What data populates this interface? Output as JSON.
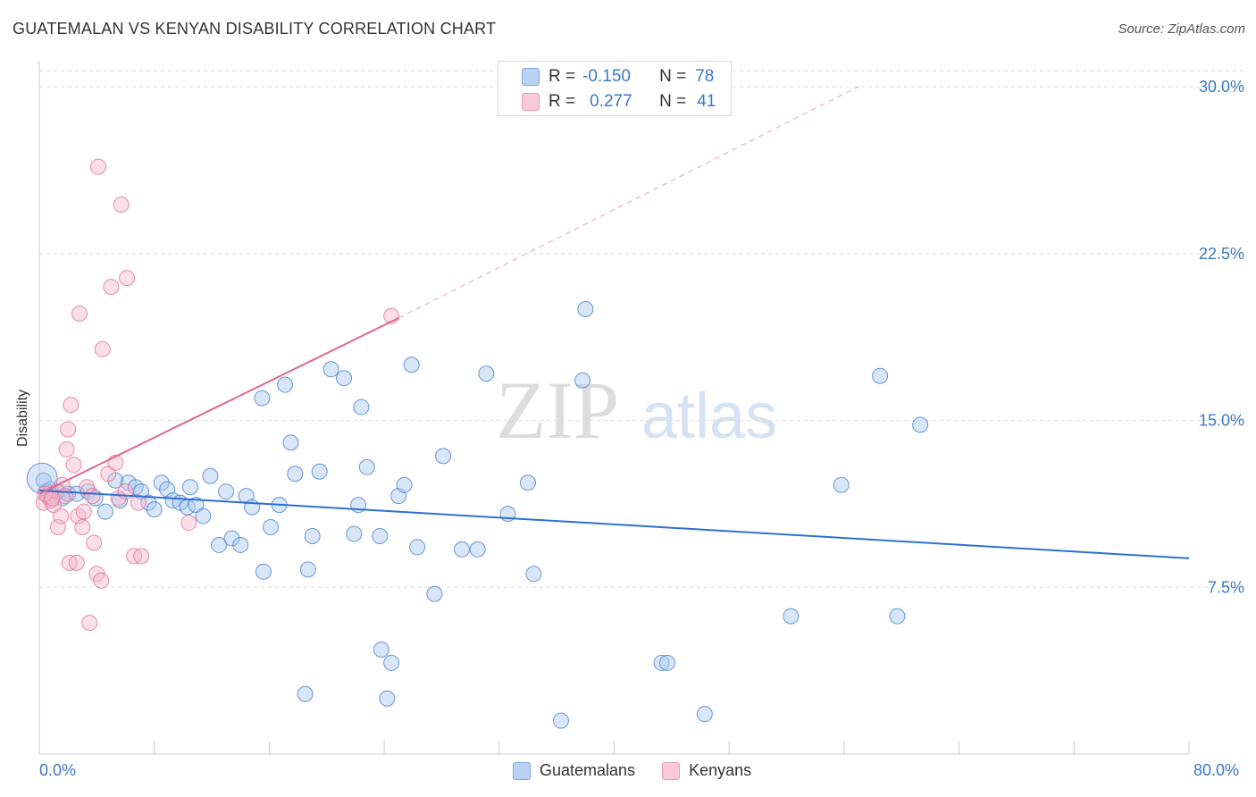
{
  "title": "GUATEMALAN VS KENYAN DISABILITY CORRELATION CHART",
  "source": "Source: ZipAtlas.com",
  "watermark": {
    "zip": "ZIP",
    "atlas": "atlas"
  },
  "stats": [
    {
      "r_label": "R =",
      "r_value": "-0.150",
      "n_label": "N =",
      "n_value": "78"
    },
    {
      "r_label": "R =",
      "r_value": "0.277",
      "n_label": "N =",
      "n_value": "41"
    }
  ],
  "chart_data": {
    "type": "scatter",
    "title": "GUATEMALAN VS KENYAN DISABILITY CORRELATION CHART",
    "xlabel": "",
    "ylabel": "Disability",
    "xlim": [
      0,
      80
    ],
    "ylim": [
      0,
      30
    ],
    "x_tick_labels": [
      "0.0%",
      "80.0%"
    ],
    "y_ticks": [
      7.5,
      15.0,
      22.5,
      30.0
    ],
    "y_tick_labels": [
      "7.5%",
      "15.0%",
      "22.5%",
      "30.0%"
    ],
    "grid": true,
    "legend_position": "bottom-center",
    "series": [
      {
        "name": "Guatemalans",
        "color": "#3b78c8",
        "fill": "#a9c7ee",
        "trend": {
          "x": [
            0,
            80
          ],
          "y": [
            11.85,
            8.8
          ]
        },
        "points": [
          [
            0.3,
            12.3
          ],
          [
            0.5,
            11.8
          ],
          [
            0.8,
            11.9
          ],
          [
            1.0,
            11.6
          ],
          [
            1.3,
            11.8
          ],
          [
            1.6,
            11.5
          ],
          [
            2.0,
            11.7
          ],
          [
            2.6,
            11.7
          ],
          [
            3.4,
            11.8
          ],
          [
            3.9,
            11.5
          ],
          [
            4.6,
            10.9
          ],
          [
            5.3,
            12.3
          ],
          [
            5.6,
            11.4
          ],
          [
            6.2,
            12.2
          ],
          [
            6.7,
            12.0
          ],
          [
            7.1,
            11.8
          ],
          [
            7.6,
            11.3
          ],
          [
            8.0,
            11.0
          ],
          [
            8.5,
            12.2
          ],
          [
            8.9,
            11.9
          ],
          [
            9.3,
            11.4
          ],
          [
            9.8,
            11.3
          ],
          [
            10.3,
            11.1
          ],
          [
            10.5,
            12.0
          ],
          [
            10.9,
            11.2
          ],
          [
            11.4,
            10.7
          ],
          [
            11.9,
            12.5
          ],
          [
            12.5,
            9.4
          ],
          [
            13.0,
            11.8
          ],
          [
            13.4,
            9.7
          ],
          [
            14.0,
            9.4
          ],
          [
            14.4,
            11.6
          ],
          [
            14.8,
            11.1
          ],
          [
            15.5,
            16.0
          ],
          [
            15.6,
            8.2
          ],
          [
            16.1,
            10.2
          ],
          [
            16.7,
            11.2
          ],
          [
            17.1,
            16.6
          ],
          [
            17.5,
            14.0
          ],
          [
            17.8,
            12.6
          ],
          [
            18.5,
            2.7
          ],
          [
            18.7,
            8.3
          ],
          [
            19.0,
            9.8
          ],
          [
            19.5,
            12.7
          ],
          [
            20.3,
            17.3
          ],
          [
            21.2,
            16.9
          ],
          [
            21.9,
            9.9
          ],
          [
            22.2,
            11.2
          ],
          [
            22.4,
            15.6
          ],
          [
            22.8,
            12.9
          ],
          [
            23.7,
            9.8
          ],
          [
            23.8,
            4.7
          ],
          [
            24.2,
            2.5
          ],
          [
            24.5,
            4.1
          ],
          [
            25.0,
            11.6
          ],
          [
            25.4,
            12.1
          ],
          [
            25.9,
            17.5
          ],
          [
            26.3,
            9.3
          ],
          [
            27.5,
            7.2
          ],
          [
            28.1,
            13.4
          ],
          [
            29.4,
            9.2
          ],
          [
            30.5,
            9.2
          ],
          [
            31.1,
            17.1
          ],
          [
            32.6,
            10.8
          ],
          [
            34.0,
            12.2
          ],
          [
            34.4,
            8.1
          ],
          [
            36.3,
            1.5
          ],
          [
            37.8,
            16.8
          ],
          [
            38.0,
            20.0
          ],
          [
            43.3,
            4.1
          ],
          [
            43.7,
            4.1
          ],
          [
            46.3,
            1.8
          ],
          [
            52.3,
            6.2
          ],
          [
            55.8,
            12.1
          ],
          [
            58.5,
            17.0
          ],
          [
            59.7,
            6.2
          ],
          [
            61.3,
            14.8
          ],
          [
            0.2,
            12.4
          ]
        ]
      },
      {
        "name": "Kenyans",
        "color": "#e06890",
        "fill": "#f5b8cc",
        "trend": {
          "x": [
            0,
            25
          ],
          "y": [
            11.7,
            19.6
          ]
        },
        "trend_extended": {
          "x": [
            25,
            57
          ],
          "y": [
            19.6,
            30.0
          ]
        },
        "points": [
          [
            0.3,
            11.3
          ],
          [
            0.6,
            11.6
          ],
          [
            0.8,
            11.4
          ],
          [
            1.0,
            11.2
          ],
          [
            1.2,
            11.8
          ],
          [
            1.3,
            10.2
          ],
          [
            1.5,
            10.7
          ],
          [
            1.6,
            12.1
          ],
          [
            1.8,
            11.6
          ],
          [
            1.9,
            13.7
          ],
          [
            2.0,
            14.6
          ],
          [
            2.1,
            8.6
          ],
          [
            2.2,
            15.7
          ],
          [
            2.4,
            13.0
          ],
          [
            2.6,
            8.6
          ],
          [
            2.7,
            10.7
          ],
          [
            2.8,
            19.8
          ],
          [
            3.0,
            10.2
          ],
          [
            3.1,
            10.9
          ],
          [
            3.3,
            12.0
          ],
          [
            3.5,
            5.9
          ],
          [
            3.7,
            11.6
          ],
          [
            3.8,
            9.5
          ],
          [
            4.0,
            8.1
          ],
          [
            4.1,
            26.4
          ],
          [
            4.3,
            7.8
          ],
          [
            4.4,
            18.2
          ],
          [
            4.8,
            12.6
          ],
          [
            5.0,
            21.0
          ],
          [
            5.3,
            13.1
          ],
          [
            5.5,
            11.5
          ],
          [
            5.7,
            24.7
          ],
          [
            6.0,
            11.8
          ],
          [
            6.1,
            21.4
          ],
          [
            6.6,
            8.9
          ],
          [
            6.9,
            11.3
          ],
          [
            7.1,
            8.9
          ],
          [
            10.4,
            10.4
          ],
          [
            24.5,
            19.7
          ],
          [
            0.4,
            11.7
          ],
          [
            0.9,
            11.5
          ]
        ]
      }
    ]
  }
}
